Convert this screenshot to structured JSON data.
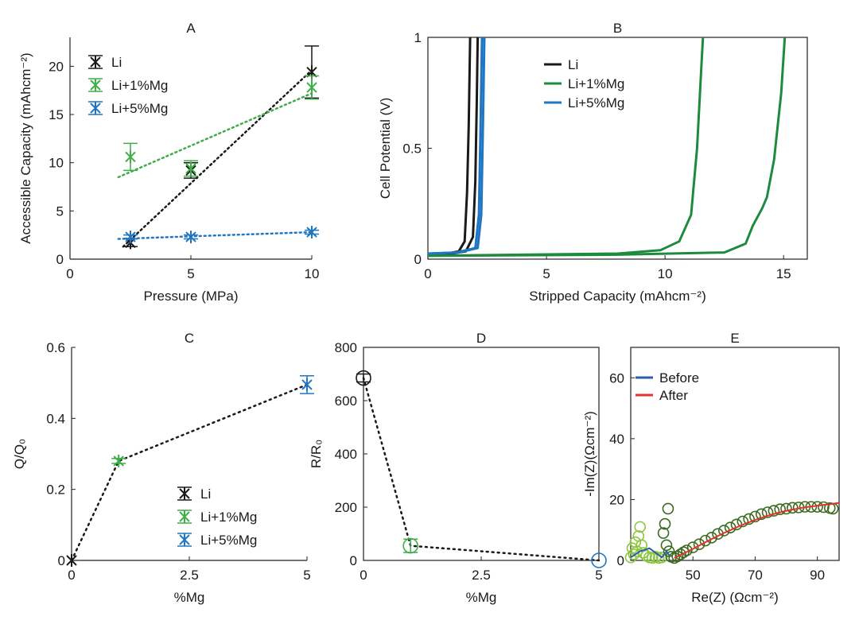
{
  "colors": {
    "li": "#1a1a1a",
    "mg1": "#3fae49",
    "mg5": "#1f77c4",
    "mg1_dark": "#1e8a3e",
    "before": "#2a5ea8",
    "after": "#e0332f",
    "eis_points_dark": "#3b6b1f",
    "eis_points_light": "#8cc63f"
  },
  "chart_data": [
    {
      "id": "A",
      "type": "scatter",
      "title": "A",
      "xlabel": "Pressure (MPa)",
      "ylabel": "Accessible Capacity (mAhcm⁻²)",
      "xlim": [
        0,
        10
      ],
      "ylim": [
        0,
        23
      ],
      "xticks": [
        0,
        5,
        10
      ],
      "yticks": [
        0,
        5,
        10,
        15,
        20
      ],
      "legend_position": "top-left",
      "series": [
        {
          "name": "Li",
          "colorKey": "li",
          "x": [
            2.5,
            5,
            10
          ],
          "y": [
            1.7,
            9.2,
            19.4
          ],
          "err": [
            0.4,
            0.8,
            2.7
          ],
          "fit": [
            [
              2.2,
              1.3
            ],
            [
              10,
              19.6
            ]
          ]
        },
        {
          "name": "Li+1%Mg",
          "colorKey": "mg1",
          "x": [
            2.5,
            5,
            10
          ],
          "y": [
            10.6,
            9.4,
            17.8
          ],
          "err": [
            1.4,
            0.8,
            1.2
          ],
          "fit": [
            [
              2.0,
              8.5
            ],
            [
              10,
              17.2
            ]
          ]
        },
        {
          "name": "Li+5%Mg",
          "colorKey": "mg5",
          "x": [
            2.5,
            5,
            10
          ],
          "y": [
            2.3,
            2.3,
            2.8
          ],
          "err": [
            0.2,
            0.2,
            0.2
          ],
          "fit": [
            [
              2.0,
              2.1
            ],
            [
              10,
              2.8
            ]
          ]
        }
      ]
    },
    {
      "id": "B",
      "type": "line",
      "title": "B",
      "xlabel": "Stripped Capacity (mAhcm⁻²)",
      "ylabel": "Cell Potential (V)",
      "xlim": [
        0,
        16
      ],
      "ylim": [
        0,
        1
      ],
      "xticks": [
        0,
        5,
        10,
        15
      ],
      "yticks": [
        0,
        0.5,
        1
      ],
      "legend_position": "top",
      "series": [
        {
          "name": "Li",
          "colorKey": "li",
          "curves": [
            [
              [
                0,
                0.02
              ],
              [
                0.8,
                0.025
              ],
              [
                1.3,
                0.035
              ],
              [
                1.55,
                0.08
              ],
              [
                1.65,
                0.3
              ],
              [
                1.72,
                0.6
              ],
              [
                1.78,
                1.0
              ]
            ],
            [
              [
                0,
                0.02
              ],
              [
                1.0,
                0.025
              ],
              [
                1.6,
                0.035
              ],
              [
                1.9,
                0.1
              ],
              [
                2.0,
                0.35
              ],
              [
                2.06,
                0.7
              ],
              [
                2.1,
                1.0
              ]
            ]
          ]
        },
        {
          "name": "Li+1%Mg",
          "colorKey": "mg1_dark",
          "curves": [
            [
              [
                0,
                0.015
              ],
              [
                4,
                0.02
              ],
              [
                8,
                0.025
              ],
              [
                9.8,
                0.04
              ],
              [
                10.6,
                0.08
              ],
              [
                11.1,
                0.2
              ],
              [
                11.35,
                0.5
              ],
              [
                11.5,
                0.8
              ],
              [
                11.6,
                1.0
              ]
            ],
            [
              [
                0,
                0.015
              ],
              [
                8,
                0.02
              ],
              [
                12.5,
                0.03
              ],
              [
                13.4,
                0.07
              ],
              [
                13.7,
                0.15
              ],
              [
                14.1,
                0.23
              ],
              [
                14.3,
                0.28
              ],
              [
                14.6,
                0.45
              ],
              [
                14.9,
                0.75
              ],
              [
                15.05,
                1.0
              ]
            ]
          ]
        },
        {
          "name": "Li+5%Mg",
          "colorKey": "mg5",
          "curves": [
            [
              [
                0,
                0.025
              ],
              [
                1.2,
                0.03
              ],
              [
                2.0,
                0.05
              ],
              [
                2.15,
                0.2
              ],
              [
                2.22,
                0.6
              ],
              [
                2.28,
                1.0
              ]
            ],
            [
              [
                0,
                0.025
              ],
              [
                1.3,
                0.03
              ],
              [
                2.1,
                0.05
              ],
              [
                2.25,
                0.2
              ],
              [
                2.32,
                0.6
              ],
              [
                2.38,
                1.0
              ]
            ]
          ]
        }
      ]
    },
    {
      "id": "C",
      "type": "scatter",
      "title": "C",
      "xlabel": "%Mg",
      "ylabel": "Q/Q₀",
      "xlim": [
        0,
        5
      ],
      "ylim": [
        0,
        0.6
      ],
      "xticks": [
        0,
        2.5,
        5
      ],
      "yticks": [
        0,
        0.2,
        0.4,
        0.6
      ],
      "legend_position": "bottom-right",
      "series": [
        {
          "name": "Li",
          "colorKey": "li",
          "x": [
            0
          ],
          "y": [
            0
          ],
          "err": [
            0
          ]
        },
        {
          "name": "Li+1%Mg",
          "colorKey": "mg1",
          "x": [
            1
          ],
          "y": [
            0.28
          ],
          "err": [
            0.007
          ]
        },
        {
          "name": "Li+5%Mg",
          "colorKey": "mg5",
          "x": [
            5
          ],
          "y": [
            0.495
          ],
          "err": [
            0.025
          ]
        }
      ],
      "trend": [
        [
          0,
          0
        ],
        [
          1,
          0.28
        ],
        [
          5,
          0.495
        ]
      ]
    },
    {
      "id": "D",
      "type": "scatter",
      "title": "D",
      "xlabel": "%Mg",
      "ylabel": "R/R₀",
      "xlim": [
        0,
        5
      ],
      "ylim": [
        0,
        800
      ],
      "xticks": [
        0,
        2.5,
        5
      ],
      "yticks": [
        0,
        200,
        400,
        600,
        800
      ],
      "series": [
        {
          "colorKey": "li",
          "x": [
            0
          ],
          "y": [
            685
          ],
          "err": [
            15
          ]
        },
        {
          "colorKey": "mg1",
          "x": [
            1
          ],
          "y": [
            55
          ],
          "err": [
            25
          ]
        },
        {
          "colorKey": "mg5",
          "x": [
            5
          ],
          "y": [
            0
          ],
          "err": [
            0
          ]
        }
      ],
      "trend": [
        [
          0,
          685
        ],
        [
          1,
          55
        ],
        [
          5,
          0
        ]
      ]
    },
    {
      "id": "E",
      "type": "scatter",
      "title": "E",
      "xlabel": "Re(Z) (Ωcm⁻²)",
      "ylabel": "-Im(Z)(Ωcm⁻²)",
      "xlim": [
        30,
        97
      ],
      "ylim": [
        0,
        70
      ],
      "xticks": [
        50,
        70,
        90
      ],
      "yticks": [
        0,
        20,
        40,
        60
      ],
      "legend_position": "top-left",
      "series": [
        {
          "name": "Before",
          "colorKey": "before",
          "type": "line",
          "points": [
            [
              30,
              1
            ],
            [
              33,
              3
            ],
            [
              36,
              4
            ],
            [
              38,
              2.5
            ],
            [
              40,
              1
            ],
            [
              41.5,
              3
            ],
            [
              42.5,
              1.5
            ]
          ]
        },
        {
          "name": "After",
          "colorKey": "after",
          "type": "line",
          "points": [
            [
              44,
              0.8
            ],
            [
              50,
              3.8
            ],
            [
              55,
              6.5
            ],
            [
              60,
              9.0
            ],
            [
              65,
              11.3
            ],
            [
              70,
              13.3
            ],
            [
              75,
              15.0
            ],
            [
              80,
              16.3
            ],
            [
              85,
              17.3
            ],
            [
              90,
              18.0
            ],
            [
              95,
              18.6
            ],
            [
              97,
              18.9
            ]
          ]
        },
        {
          "colorKey": "eis_points_light",
          "type": "markers",
          "points": [
            [
              30,
              1
            ],
            [
              30.5,
              4
            ],
            [
              31,
              2
            ],
            [
              31.5,
              6
            ],
            [
              32,
              3
            ],
            [
              32.5,
              8
            ],
            [
              33,
              11
            ],
            [
              33.5,
              5
            ],
            [
              34,
              2.5
            ],
            [
              35,
              1.5
            ],
            [
              36,
              1
            ],
            [
              37,
              0.8
            ],
            [
              38,
              1.2
            ],
            [
              39,
              0.8
            ],
            [
              40,
              1
            ]
          ]
        },
        {
          "colorKey": "eis_points_dark",
          "type": "markers",
          "points": [
            [
              40.5,
              9
            ],
            [
              41,
              12
            ],
            [
              41.5,
              5
            ],
            [
              42,
              17
            ],
            [
              42.3,
              3
            ],
            [
              43,
              1.2
            ],
            [
              44,
              0.8
            ],
            [
              45,
              1.3
            ],
            [
              46,
              2
            ],
            [
              47,
              2.7
            ],
            [
              48,
              3.3
            ],
            [
              50,
              4.3
            ],
            [
              52,
              5.3
            ],
            [
              54,
              6.5
            ],
            [
              56,
              7.5
            ],
            [
              58,
              8.7
            ],
            [
              60,
              9.8
            ],
            [
              62,
              10.8
            ],
            [
              64,
              11.8
            ],
            [
              66,
              12.8
            ],
            [
              68,
              13.6
            ],
            [
              70,
              14.4
            ],
            [
              72,
              15.2
            ],
            [
              74,
              15.8
            ],
            [
              76,
              16.3
            ],
            [
              78,
              16.8
            ],
            [
              80,
              17.0
            ],
            [
              82,
              17.3
            ],
            [
              84,
              17.4
            ],
            [
              86,
              17.6
            ],
            [
              88,
              17.6
            ],
            [
              90,
              17.6
            ],
            [
              92,
              17.5
            ],
            [
              94,
              17.2
            ],
            [
              95,
              17.0
            ]
          ]
        }
      ]
    }
  ]
}
